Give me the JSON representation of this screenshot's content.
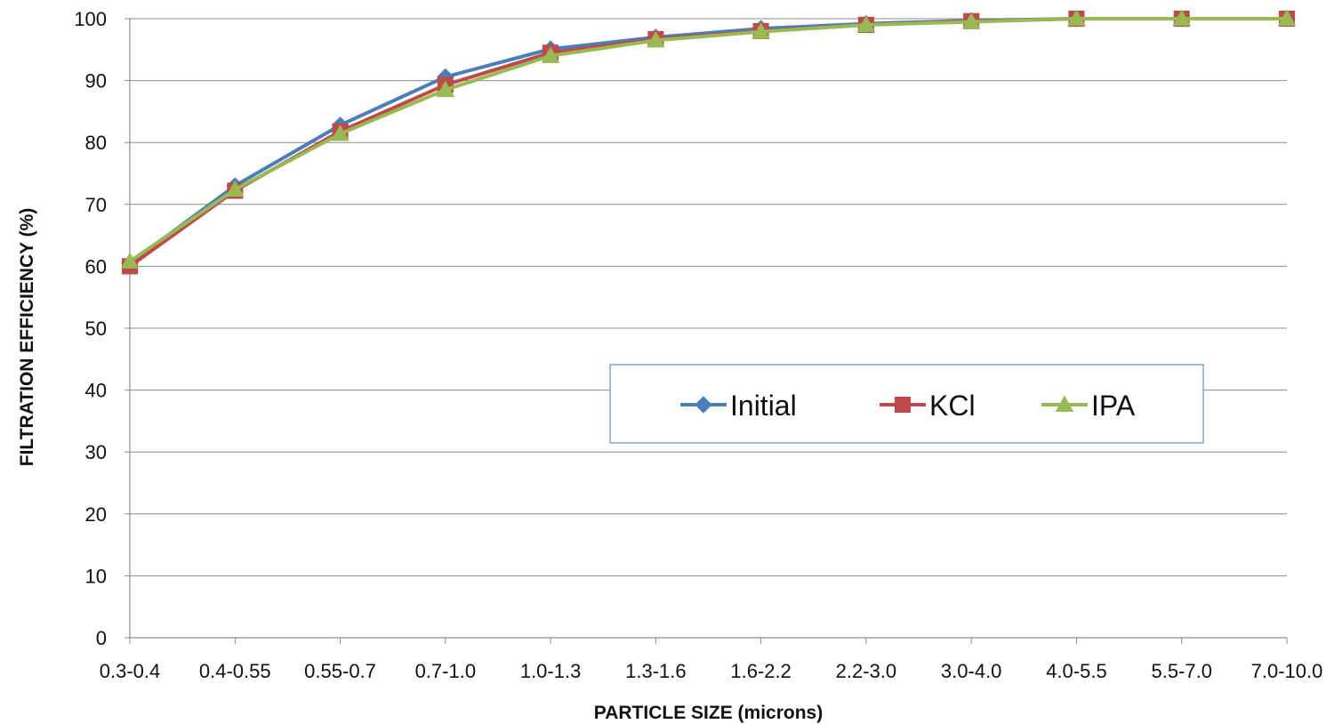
{
  "chart_data": {
    "type": "line",
    "title": "",
    "xlabel": "PARTICLE SIZE (microns)",
    "ylabel": "FILTRATION EFFICIENCY (%)",
    "categories": [
      "0.3-0.4",
      "0.4-0.55",
      "0.55-0.7",
      "0.7-1.0",
      "1.0-1.3",
      "1.3-1.6",
      "1.6-2.2",
      "2.2-3.0",
      "3.0-4.0",
      "4.0-5.5",
      "5.5-7.0",
      "7.0-10.0"
    ],
    "ylim": [
      0,
      100
    ],
    "yticks": [
      0,
      10,
      20,
      30,
      40,
      50,
      60,
      70,
      80,
      90,
      100
    ],
    "grid": true,
    "legend_position": "center-right",
    "series": [
      {
        "name": "Initial",
        "color": "#4A7EBB",
        "marker": "diamond",
        "values": [
          60.5,
          73.0,
          82.8,
          90.6,
          95.1,
          97.0,
          98.4,
          99.2,
          99.7,
          100,
          100,
          100
        ]
      },
      {
        "name": "KCl",
        "color": "#BE4B48",
        "marker": "square",
        "values": [
          60.0,
          72.2,
          81.8,
          89.3,
          94.5,
          96.7,
          98.0,
          99.0,
          99.6,
          100,
          100,
          100
        ]
      },
      {
        "name": "IPA",
        "color": "#98B954",
        "marker": "triangle",
        "values": [
          60.8,
          72.4,
          81.4,
          88.5,
          94.0,
          96.5,
          97.9,
          99.0,
          99.5,
          100,
          100,
          100
        ]
      }
    ]
  }
}
